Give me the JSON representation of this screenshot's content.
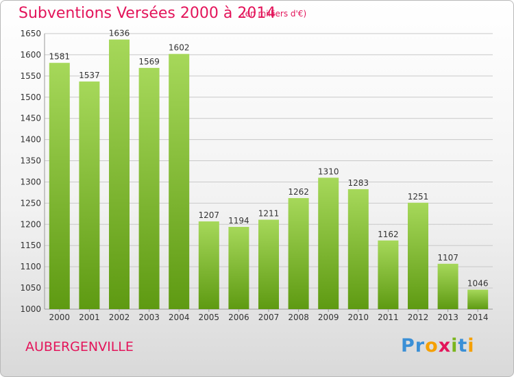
{
  "page": {
    "title": "Subventions Versées 2000 à 2014",
    "subtitle": "(en milliers d'€)",
    "commune": "AUBERGENVILLE",
    "brand": {
      "text": "Proxiti",
      "letters": [
        {
          "ch": "P",
          "color": "#3a8fd6"
        },
        {
          "ch": "r",
          "color": "#3a8fd6"
        },
        {
          "ch": "o",
          "color": "#f5a000"
        },
        {
          "ch": "x",
          "color": "#e3145a"
        },
        {
          "ch": "i",
          "color": "#7ab51d"
        },
        {
          "ch": "t",
          "color": "#3a8fd6"
        },
        {
          "ch": "i",
          "color": "#f5a000"
        }
      ]
    }
  },
  "chart_data": {
    "type": "bar",
    "categories": [
      "2000",
      "2001",
      "2002",
      "2003",
      "2004",
      "2005",
      "2006",
      "2007",
      "2008",
      "2009",
      "2010",
      "2011",
      "2012",
      "2013",
      "2014"
    ],
    "values": [
      1581,
      1537,
      1636,
      1569,
      1602,
      1207,
      1194,
      1211,
      1262,
      1310,
      1283,
      1162,
      1251,
      1107,
      1046
    ],
    "title": "Subventions Versées 2000 à 2014",
    "ylim": [
      1000,
      1650
    ],
    "yticks": [
      1000,
      1050,
      1100,
      1150,
      1200,
      1250,
      1300,
      1350,
      1400,
      1450,
      1500,
      1550,
      1600,
      1650
    ],
    "grid": true,
    "data_labels": true,
    "bar_color_top": "#a6d85a",
    "bar_color_bottom": "#5e9a12"
  }
}
